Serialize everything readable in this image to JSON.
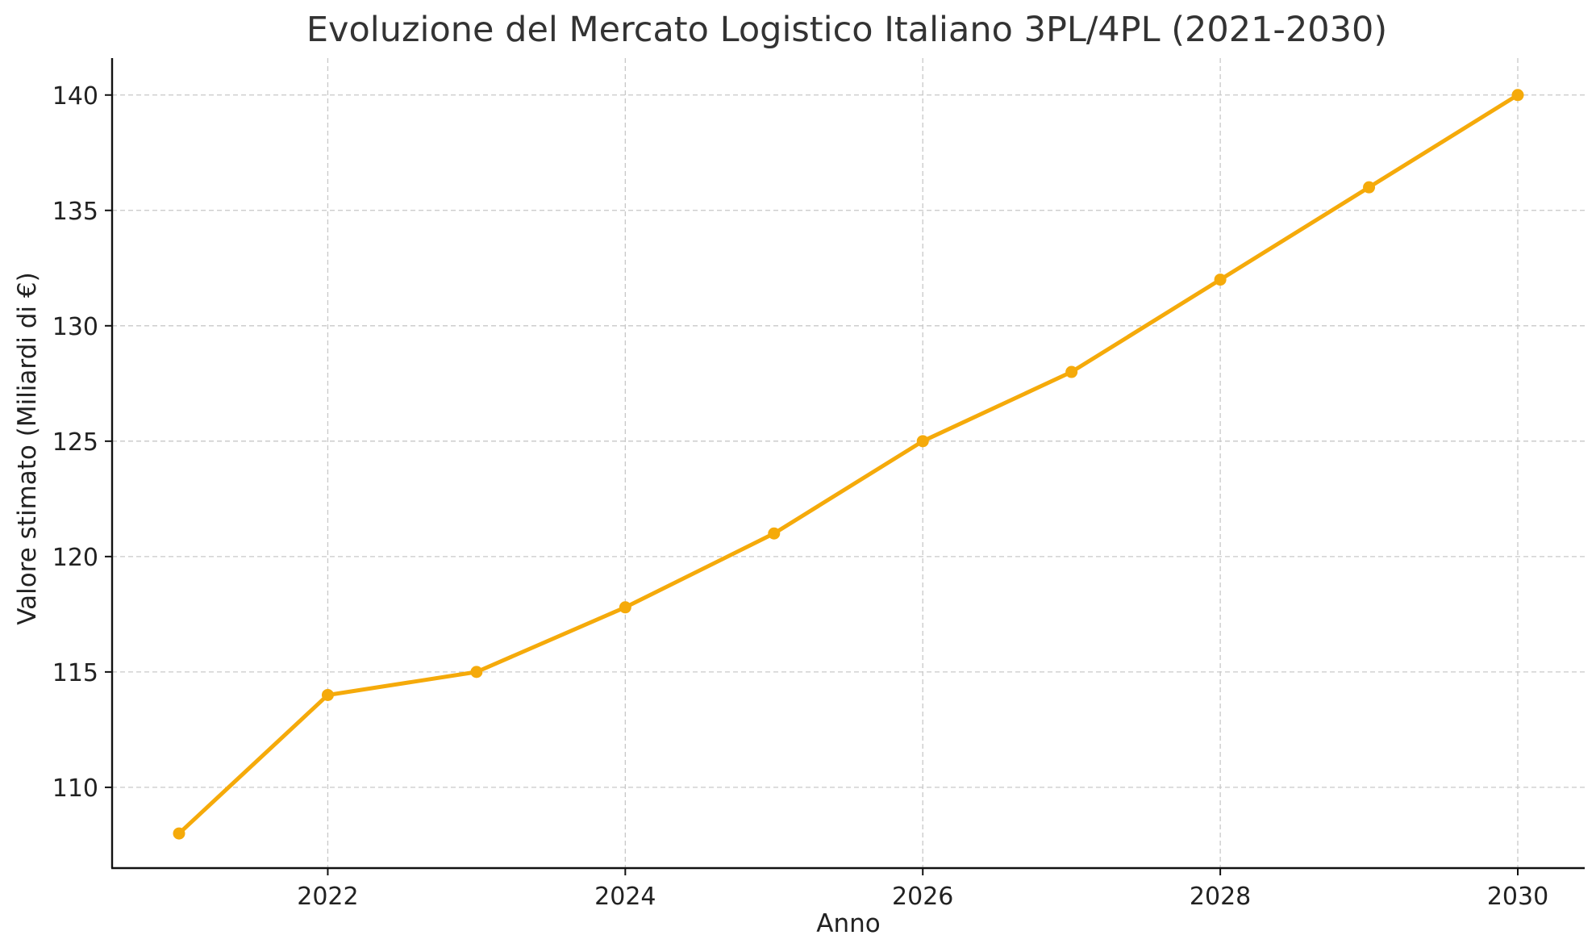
{
  "chart_data": {
    "type": "line",
    "title": "Evoluzione del Mercato Logistico Italiano 3PL/4PL (2021-2030)",
    "xlabel": "Anno",
    "ylabel": "Valore stimato (Miliardi di €)",
    "x": [
      2021,
      2022,
      2023,
      2024,
      2025,
      2026,
      2027,
      2028,
      2029,
      2030
    ],
    "series": [
      {
        "values": [
          108,
          114,
          115,
          117.8,
          121,
          125,
          128,
          132,
          136,
          140
        ]
      }
    ],
    "xlim": [
      2020.55,
      2030.45
    ],
    "ylim": [
      106.5,
      141.6
    ],
    "xticks": [
      2022,
      2024,
      2026,
      2028,
      2030
    ],
    "yticks": [
      110,
      115,
      120,
      125,
      130,
      135,
      140
    ],
    "grid": true,
    "line_color": "#F5AA0A"
  }
}
